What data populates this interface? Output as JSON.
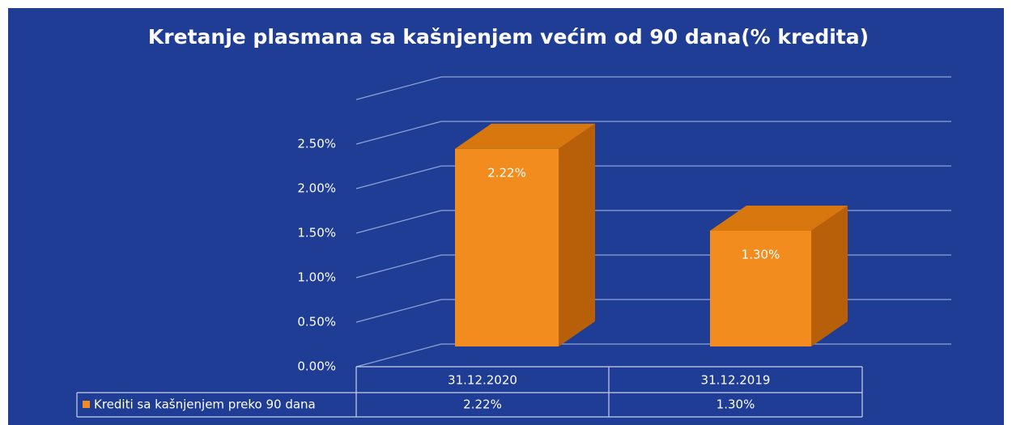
{
  "chart_data": {
    "type": "bar3d",
    "title": "Kretanje plasmana sa kašnjenjem većim od 90 dana(% kredita)",
    "categories": [
      "31.12.2020",
      "31.12.2019"
    ],
    "series": [
      {
        "name": "Krediti sa kašnjenjem preko 90 dana",
        "color": "#f28c1e",
        "values": [
          2.22,
          1.3
        ],
        "value_labels": [
          "2.22%",
          "1.30%"
        ]
      }
    ],
    "ylim": [
      0,
      3
    ],
    "yticks": [
      {
        "value": 0,
        "label": "0.00%"
      },
      {
        "value": 0.5,
        "label": "0.50%"
      },
      {
        "value": 1,
        "label": "1.00%"
      },
      {
        "value": 1.5,
        "label": "1.50%"
      },
      {
        "value": 2,
        "label": "2.00%"
      },
      {
        "value": 2.5,
        "label": "2.50%"
      }
    ],
    "grid": true,
    "background": "#1f3d95"
  }
}
